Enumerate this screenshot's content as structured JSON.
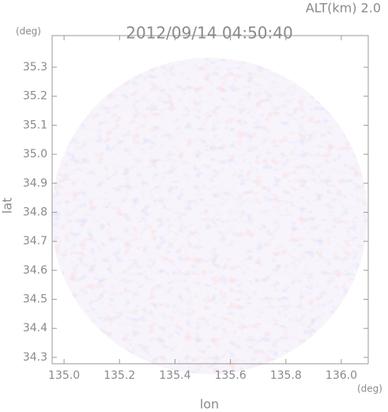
{
  "chart_data": {
    "type": "image",
    "title": "2012/09/14 04:50:40",
    "subtitle": "ALT(km) 2.0",
    "x_label": "lon",
    "y_label": "lat",
    "x_unit": "(deg)",
    "y_unit": "(deg)",
    "xlim": [
      134.957,
      136.097
    ],
    "ylim": [
      34.278,
      35.409
    ],
    "xticks": [
      {
        "value": 135,
        "label": "135.0"
      },
      135.2,
      135.4,
      135.6,
      135.8,
      {
        "value": 136,
        "label": "136.0"
      }
    ],
    "yticks": [
      34.3,
      34.4,
      34.5,
      34.6,
      34.7,
      34.8,
      34.9,
      {
        "value": 35,
        "label": "35.0"
      },
      35.1,
      35.2,
      35.3
    ]
  }
}
